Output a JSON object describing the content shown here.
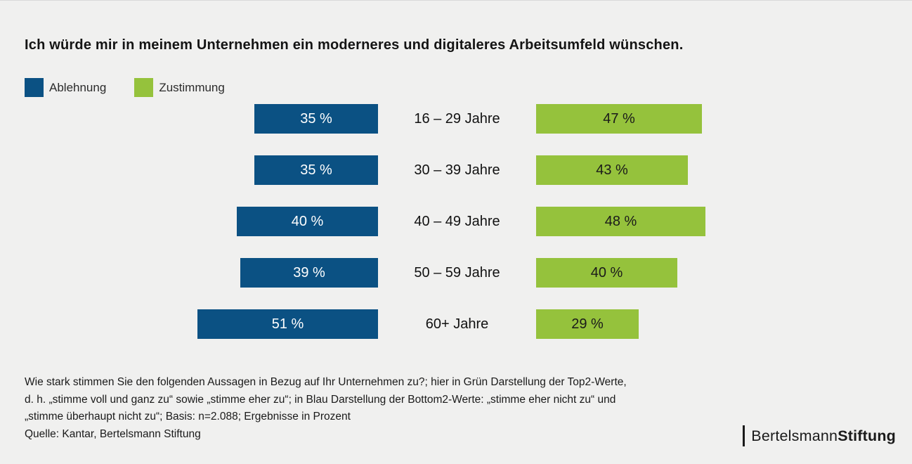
{
  "title": "Ich würde mir in meinem Unternehmen ein moderneres und digitaleres Arbeitsumfeld wünschen.",
  "legend": {
    "items": [
      {
        "label": "Ablehnung",
        "color": "#0b5183"
      },
      {
        "label": "Zustimmung",
        "color": "#95c23c"
      }
    ]
  },
  "chart_data": {
    "type": "bar",
    "orientation": "horizontal-diverging",
    "unit": "%",
    "categories": [
      "16 – 29 Jahre",
      "30 – 39 Jahre",
      "40 – 49 Jahre",
      "50 – 59 Jahre",
      "60+ Jahre"
    ],
    "series": [
      {
        "name": "Ablehnung",
        "side": "left",
        "color": "#0b5183",
        "text_color": "#ffffff",
        "values": [
          35,
          35,
          40,
          39,
          51
        ]
      },
      {
        "name": "Zustimmung",
        "side": "right",
        "color": "#95c23c",
        "text_color": "#1a1a1a",
        "values": [
          47,
          43,
          48,
          40,
          29
        ]
      }
    ],
    "value_labels": {
      "Ablehnung": [
        "35 %",
        "35 %",
        "40 %",
        "39 %",
        "51 %"
      ],
      "Zustimmung": [
        "47 %",
        "43 %",
        "48 %",
        "40 %",
        "29 %"
      ]
    },
    "legend_position": "top-left",
    "grid": false
  },
  "footnote": {
    "lines": [
      "Wie stark stimmen Sie den folgenden Aussagen in Bezug auf Ihr Unternehmen zu?; hier in Grün Darstellung der Top2-Werte,",
      "d. h. „stimme voll und ganz zu“ sowie „stimme eher zu“; in Blau Darstellung der Bottom2-Werte: „stimme eher nicht zu“ und",
      "„stimme überhaupt nicht zu“; Basis: n=2.088; Ergebnisse in Prozent",
      "Quelle: Kantar, Bertelsmann Stiftung"
    ]
  },
  "logo": {
    "name_regular": "Bertelsmann",
    "name_bold": "Stiftung"
  }
}
